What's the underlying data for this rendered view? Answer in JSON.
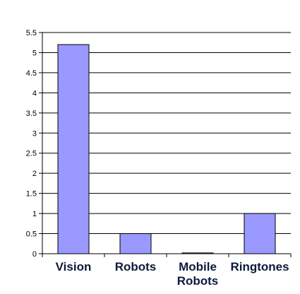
{
  "chart_data": {
    "type": "bar",
    "title": "",
    "xlabel": "",
    "ylabel": "",
    "categories": [
      [
        "Vision"
      ],
      [
        "Robots"
      ],
      [
        "Mobile",
        "Robots"
      ],
      [
        "Ringtones"
      ]
    ],
    "values": [
      5.2,
      0.5,
      0.02,
      1.0
    ],
    "ylim": [
      0,
      5.5
    ],
    "yticks": [
      "0",
      "0.5",
      "1",
      "1.5",
      "2",
      "2.5",
      "3",
      "3.5",
      "4",
      "4.5",
      "5",
      "5.5"
    ],
    "ytick_values": [
      0,
      0.5,
      1,
      1.5,
      2,
      2.5,
      3,
      3.5,
      4,
      4.5,
      5,
      5.5
    ],
    "grid": true,
    "legend": "none",
    "colors": {
      "bar_fill": "#9999ff",
      "bar_stroke": "#000000",
      "grid": "#000000",
      "axis": "#000000",
      "label": "#0d1a3a"
    }
  }
}
